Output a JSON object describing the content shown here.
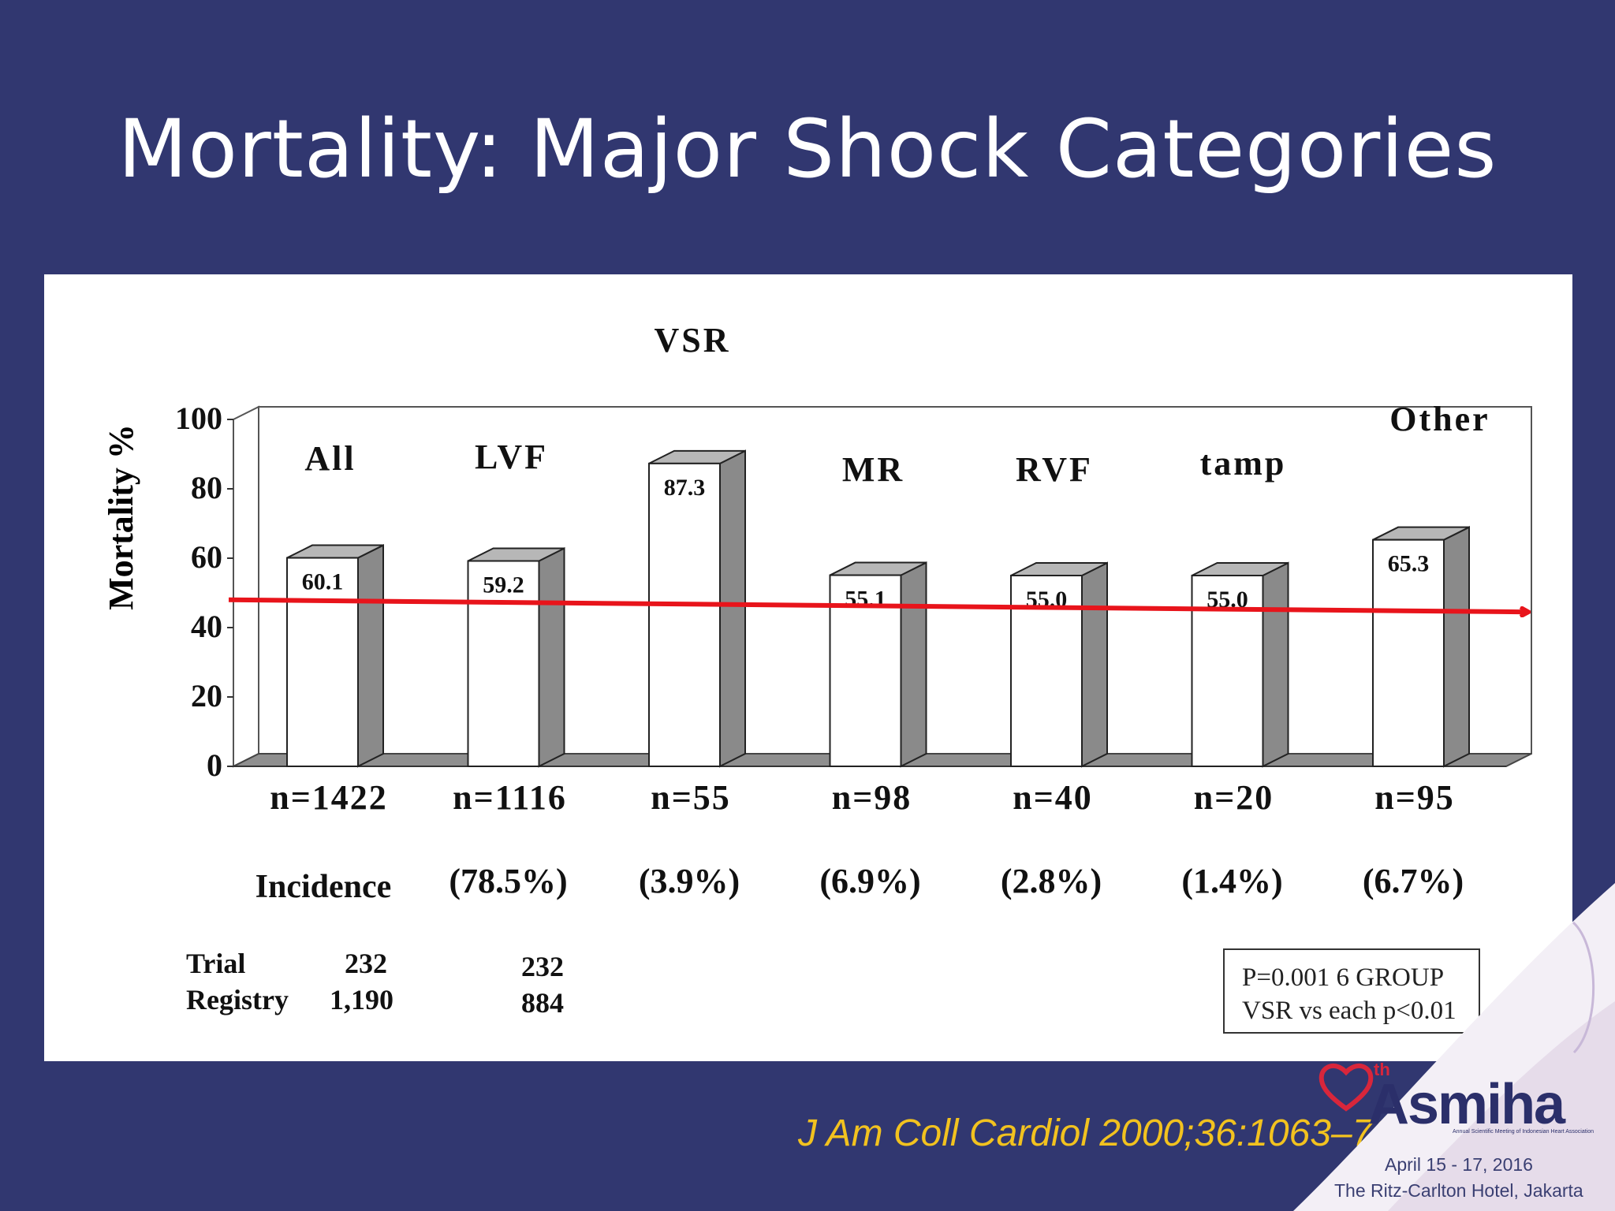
{
  "slide": {
    "title": "Mortality: Major Shock Categories",
    "citation": "J Am Coll Cardiol 2000;36:1063–70",
    "logo": {
      "ordinal": "th",
      "name": "Asmiha",
      "subtitle": "Annual Scientific Meeting of Indonesian Heart Association",
      "dates": "April 15 - 17, 2016",
      "venue": "The Ritz-Carlton Hotel, Jakarta"
    }
  },
  "chart_data": {
    "type": "bar",
    "title": "",
    "ylabel": "Mortality %",
    "xlabel": "",
    "ylim": [
      0,
      100
    ],
    "yticks": [
      "0",
      "20",
      "40",
      "60",
      "80",
      "100"
    ],
    "yticks_values": [
      0,
      20,
      40,
      60,
      80,
      100
    ],
    "categories": [
      "All",
      "LVF",
      "VSR",
      "MR",
      "RVF",
      "tamp",
      "Other"
    ],
    "values": [
      60.1,
      59.2,
      87.3,
      55.1,
      55.0,
      55.0,
      65.3
    ],
    "value_labels": [
      "60.1",
      "59.2",
      "87.3",
      "55.1",
      "55.0",
      "55.0",
      "65.3"
    ],
    "n_labels": [
      "n=1422",
      "n=1116",
      "n=55",
      "n=98",
      "n=40",
      "n=20",
      "n=95"
    ],
    "incidence_label": "Incidence",
    "incidence": [
      "(78.5%)",
      "(3.9%)",
      "(6.9%)",
      "(2.8%)",
      "(1.4%)",
      "(6.7%)"
    ],
    "trial_registry": {
      "trial_label": "Trial",
      "registry_label": "Registry",
      "all_trial": "232",
      "all_registry": "1,190",
      "lvf_trial": "232",
      "lvf_registry": "884"
    },
    "stats_box": [
      "P=0.001  6 GROUP",
      "VSR vs each p<0.01"
    ],
    "trend_arrow": {
      "start_value": 48,
      "end_value": 44.5,
      "color": "#e8141b"
    },
    "style": {
      "bar_face": "#ffffff",
      "bar_side": "#8a8a8a",
      "bar_top": "#b7b7b7",
      "floor": "#8f8f8f"
    }
  }
}
